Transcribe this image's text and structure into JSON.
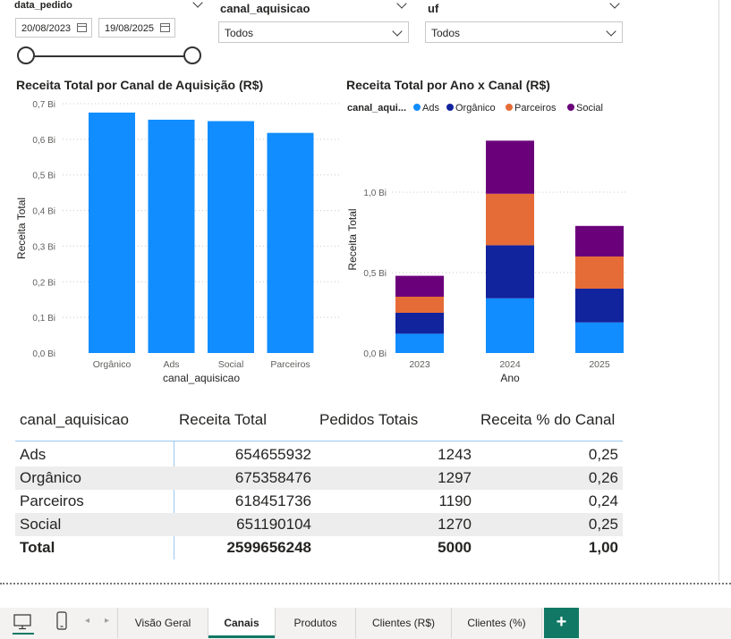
{
  "filters": {
    "date": {
      "label": "data_pedido",
      "start": "20/08/2023",
      "end": "19/08/2025"
    },
    "canal": {
      "label": "canal_aquisicao",
      "value": "Todos"
    },
    "uf": {
      "label": "uf",
      "value": "Todos"
    }
  },
  "colors": {
    "ads": "#118DFF",
    "organico": "#12239E",
    "parceiros": "#E66C37",
    "social": "#6B007B",
    "accent": "#117865"
  },
  "chart_data": [
    {
      "type": "bar",
      "title": "Receita Total por Canal de Aquisição (R$)",
      "xlabel": "canal_aquisicao",
      "ylabel": "Receita Total",
      "categories": [
        "Orgânico",
        "Ads",
        "Social",
        "Parceiros"
      ],
      "values": [
        0.675,
        0.655,
        0.651,
        0.618
      ],
      "y_ticks": [
        "0,0 Bi",
        "0,1 Bi",
        "0,2 Bi",
        "0,3 Bi",
        "0,4 Bi",
        "0,5 Bi",
        "0,6 Bi",
        "0,7 Bi"
      ],
      "ylim": [
        0,
        0.7
      ],
      "unit": "Bi",
      "color": "#118DFF",
      "grid": true
    },
    {
      "type": "bar",
      "stacked": true,
      "title": "Receita Total por Ano x Canal (R$)",
      "xlabel": "Ano",
      "ylabel": "Receita Total",
      "legend_title": "canal_aqui...",
      "legend_position": "top-left",
      "categories": [
        "2023",
        "2024",
        "2025"
      ],
      "series": [
        {
          "name": "Ads",
          "color": "#118DFF",
          "values": [
            0.12,
            0.34,
            0.19
          ]
        },
        {
          "name": "Orgânico",
          "color": "#12239E",
          "values": [
            0.13,
            0.33,
            0.21
          ]
        },
        {
          "name": "Parceiros",
          "color": "#E66C37",
          "values": [
            0.1,
            0.32,
            0.2
          ]
        },
        {
          "name": "Social",
          "color": "#6B007B",
          "values": [
            0.13,
            0.33,
            0.19
          ]
        }
      ],
      "y_ticks": [
        "0,0 Bi",
        "0,5 Bi",
        "1,0 Bi"
      ],
      "ylim": [
        0,
        1.3
      ],
      "grid": true
    }
  ],
  "table": {
    "headers": [
      "canal_aquisicao",
      "Receita Total",
      "Pedidos Totais",
      "Receita % do Canal"
    ],
    "rows": [
      [
        "Ads",
        "654655932",
        "1243",
        "0,25"
      ],
      [
        "Orgânico",
        "675358476",
        "1297",
        "0,26"
      ],
      [
        "Parceiros",
        "618451736",
        "1190",
        "0,24"
      ],
      [
        "Social",
        "651190104",
        "1270",
        "0,25"
      ]
    ],
    "total": [
      "Total",
      "2599656248",
      "5000",
      "1,00"
    ]
  },
  "tabs": [
    "Visão Geral",
    "Canais",
    "Produtos",
    "Clientes (R$)",
    "Clientes (%)"
  ],
  "active_tab": "Canais",
  "add_page_label": "+"
}
